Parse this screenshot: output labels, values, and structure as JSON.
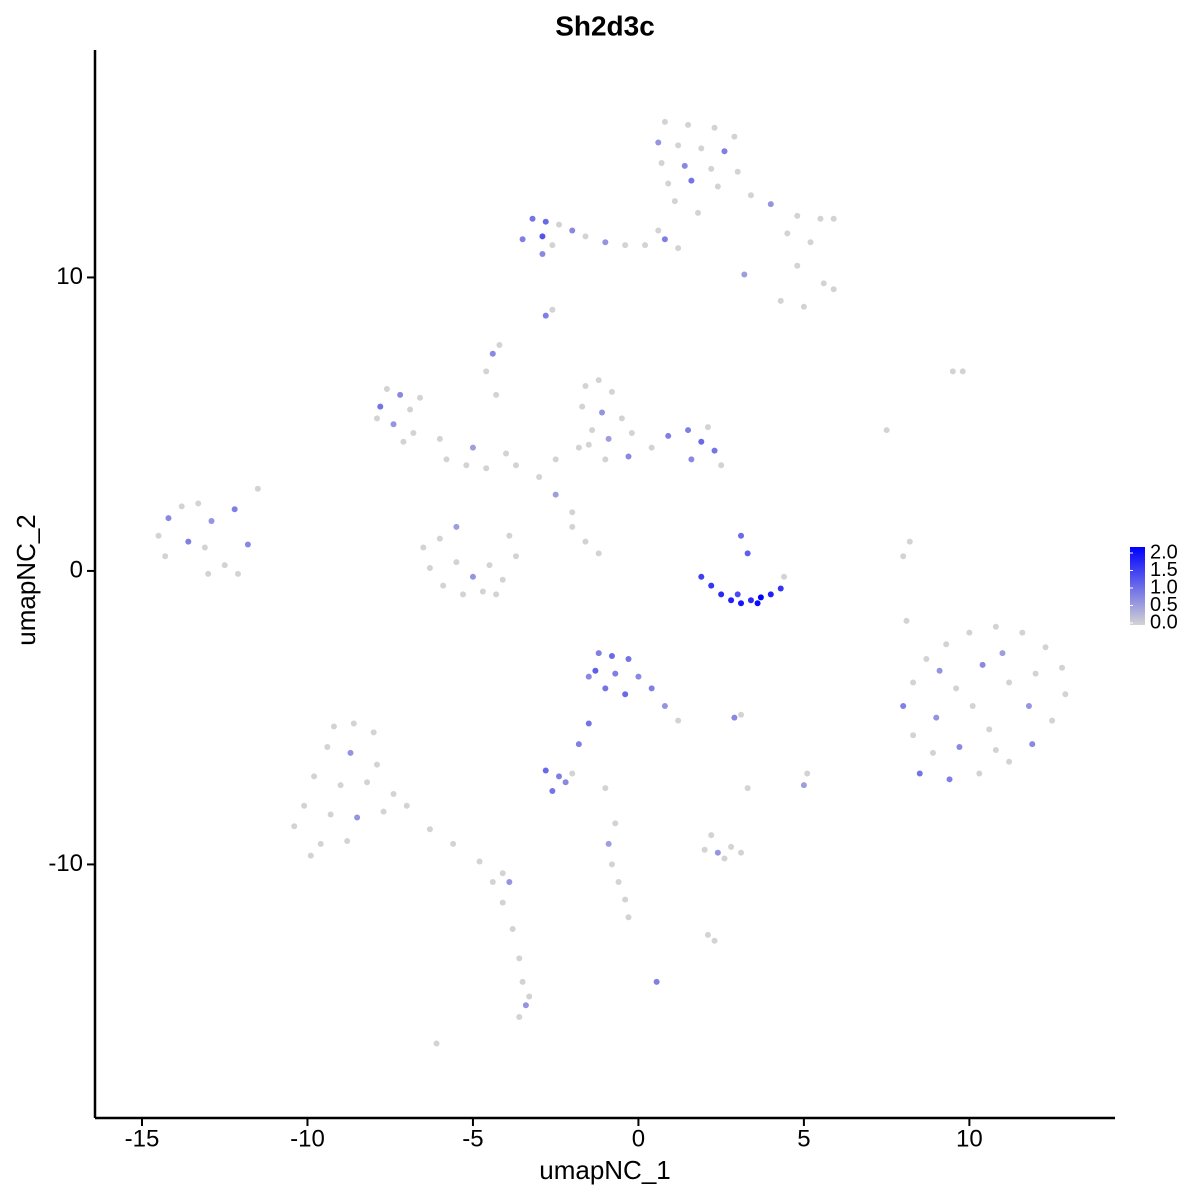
{
  "chart_data": {
    "type": "scatter",
    "title": "Sh2d3c",
    "x_label": "umapNC_1",
    "y_label": "umapNC_2",
    "xlim": [
      -16.42,
      14.4
    ],
    "ylim": [
      -18.64,
      17.75
    ],
    "xticks": [
      -15,
      -10,
      -5,
      0,
      5,
      10
    ],
    "yticks": [
      -10,
      0,
      10
    ],
    "color_low": "#d3d3d3",
    "color_high": "#0000ff",
    "clim": [
      0,
      2
    ],
    "colorbar_ticks": [
      {
        "value": 0,
        "label": "0.0"
      },
      0.5,
      {
        "value": 1,
        "label": "1.0"
      },
      1.5,
      {
        "value": 2,
        "label": "2.0"
      }
    ],
    "x": [
      0.8,
      1.5,
      2.3,
      2.9,
      0.6,
      1.2,
      1.9,
      2.6,
      0.7,
      1.4,
      2.2,
      3.0,
      0.9,
      1.6,
      2.4,
      1.1,
      1.8,
      3.4,
      4.0,
      4.8,
      5.5,
      5.9,
      4.5,
      5.2,
      4.8,
      5.6,
      5.9,
      4.3,
      5.0,
      3.2,
      -3.2,
      -2.8,
      -2.4,
      -3.5,
      -2.9,
      -2.6,
      -2.0,
      -1.6,
      -1.0,
      -0.4,
      0.2,
      0.8,
      1.2,
      -2.9,
      0.6,
      -2.8,
      -2.6,
      -4.4,
      -4.2,
      -7.8,
      -7.6,
      -7.2,
      -6.9,
      -7.4,
      -6.8,
      -7.9,
      -7.1,
      -6.6,
      -6.0,
      -5.0,
      -5.8,
      -5.2,
      -4.6,
      -4.0,
      -4.6,
      -4.3,
      -3.7,
      -2.5,
      -2.0,
      -1.6,
      -1.2,
      -0.8,
      -1.7,
      -1.1,
      -0.5,
      -1.4,
      -0.9,
      -0.2,
      -1.8,
      -1.0,
      -0.3,
      0.4,
      0.9,
      1.5,
      1.9,
      2.3,
      2.5,
      1.6,
      2.1,
      -2.5,
      -3.0,
      -2.0,
      -1.6,
      -1.2,
      -1.5,
      -6.5,
      -6.3,
      -5.9,
      -5.3,
      -4.7,
      -4.1,
      -3.7,
      -3.9,
      -5.0,
      -5.5,
      -4.5,
      -6.0,
      -5.5,
      -4.3,
      -14.5,
      -14.2,
      -13.8,
      -13.3,
      -12.9,
      -13.6,
      -14.3,
      -13.1,
      -12.5,
      -12.1,
      -13.0,
      -11.8,
      -11.5,
      -12.2,
      1.9,
      2.2,
      2.5,
      2.8,
      3.1,
      3.4,
      3.7,
      4.0,
      4.3,
      4.4,
      3.0,
      3.6,
      3.1,
      3.3,
      8.0,
      8.3,
      8.7,
      9.3,
      10.0,
      10.8,
      11.6,
      12.3,
      12.8,
      12.9,
      12.5,
      11.9,
      11.2,
      10.3,
      9.4,
      8.5,
      8.3,
      9.0,
      9.6,
      10.4,
      11.2,
      11.8,
      10.6,
      9.7,
      10.1,
      11.0,
      12.0,
      9.1,
      10.8,
      8.9,
      -1.2,
      -0.8,
      -0.3,
      -1.3,
      -0.7,
      0.0,
      -1.0,
      -0.4,
      0.4,
      0.8,
      1.2,
      -1.5,
      -1.5,
      -1.8,
      -2.8,
      -2.4,
      -2.0,
      -2.6,
      -2.2,
      -9.2,
      -8.6,
      -8.0,
      -9.4,
      -8.7,
      -7.9,
      -9.8,
      -9.0,
      -8.2,
      -7.4,
      -10.1,
      -9.3,
      -8.5,
      -7.7,
      -10.4,
      -9.6,
      -8.8,
      -9.9,
      -7.0,
      -6.3,
      -5.6,
      -4.8,
      -4.1,
      -3.9,
      -4.4,
      -4.1,
      -3.8,
      -3.6,
      -3.5,
      -3.4,
      -3.6,
      -3.3,
      2.0,
      2.4,
      2.8,
      3.1,
      2.2,
      2.6,
      -0.9,
      -0.8,
      -0.6,
      -0.4,
      -0.3,
      -0.7,
      2.3,
      2.1,
      0.55,
      -6.1,
      9.5,
      9.8,
      7.5,
      8.0,
      8.2,
      8.1,
      5.0,
      5.1,
      2.9,
      3.1,
      3.3,
      -1.0
    ],
    "y": [
      15.3,
      15.2,
      15.1,
      14.8,
      14.6,
      14.5,
      14.4,
      14.3,
      13.9,
      13.8,
      13.7,
      13.6,
      13.2,
      13.3,
      13.1,
      12.6,
      12.2,
      12.8,
      12.5,
      12.1,
      12.0,
      12.0,
      11.5,
      11.2,
      10.4,
      9.8,
      9.6,
      9.2,
      9.0,
      10.1,
      12.0,
      11.9,
      11.8,
      11.3,
      11.4,
      11.1,
      11.6,
      11.4,
      11.2,
      11.1,
      11.1,
      11.3,
      11.0,
      10.8,
      11.6,
      8.7,
      8.9,
      7.4,
      7.7,
      5.6,
      6.2,
      6.0,
      5.5,
      5.0,
      4.7,
      5.2,
      4.4,
      5.9,
      4.5,
      4.2,
      3.8,
      3.6,
      3.5,
      4.0,
      6.8,
      6.0,
      3.6,
      2.6,
      2.0,
      6.3,
      6.5,
      6.1,
      5.6,
      5.4,
      5.2,
      4.8,
      4.5,
      4.7,
      4.2,
      3.8,
      3.9,
      4.2,
      4.6,
      4.8,
      4.4,
      4.1,
      3.6,
      3.8,
      4.9,
      3.8,
      3.2,
      1.5,
      1.0,
      0.6,
      4.3,
      0.8,
      0.1,
      -0.5,
      -0.8,
      -0.7,
      -0.3,
      0.5,
      1.2,
      -0.2,
      0.3,
      0.2,
      1.1,
      1.5,
      -0.8,
      1.2,
      1.8,
      2.2,
      2.3,
      1.7,
      1.0,
      0.5,
      0.8,
      0.2,
      -0.1,
      -0.1,
      0.9,
      2.8,
      2.1,
      -0.2,
      -0.5,
      -0.8,
      -1.0,
      -1.1,
      -1.0,
      -0.9,
      -0.8,
      -0.6,
      -0.2,
      -0.8,
      -1.1,
      1.2,
      0.6,
      -4.6,
      -3.8,
      -3.0,
      -2.5,
      -2.1,
      -1.9,
      -2.1,
      -2.6,
      -3.3,
      -4.2,
      -5.1,
      -5.9,
      -6.5,
      -6.9,
      -7.1,
      -6.9,
      -5.6,
      -5.0,
      -4.0,
      -3.2,
      -3.8,
      -4.6,
      -5.4,
      -6.0,
      -4.6,
      -2.8,
      -3.5,
      -3.4,
      -6.1,
      -6.2,
      -2.8,
      -2.9,
      -3.0,
      -3.4,
      -3.5,
      -3.6,
      -4.0,
      -4.2,
      -4.0,
      -4.6,
      -5.1,
      -3.6,
      -5.2,
      -5.9,
      -6.8,
      -7.0,
      -6.9,
      -7.5,
      -7.2,
      -5.3,
      -5.2,
      -5.5,
      -6.0,
      -6.2,
      -6.6,
      -7.0,
      -7.3,
      -7.2,
      -7.6,
      -8.0,
      -8.3,
      -8.4,
      -8.2,
      -8.7,
      -9.3,
      -9.2,
      -9.7,
      -8.0,
      -8.8,
      -9.3,
      -9.9,
      -10.3,
      -10.6,
      -10.6,
      -11.3,
      -12.2,
      -13.2,
      -14.0,
      -14.8,
      -15.2,
      -14.5,
      -9.5,
      -9.6,
      -9.4,
      -9.6,
      -9.0,
      -9.8,
      -9.3,
      -10.0,
      -10.6,
      -11.2,
      -11.8,
      -8.6,
      -12.6,
      -12.4,
      -14.0,
      -16.1,
      6.8,
      6.8,
      4.8,
      0.5,
      1.0,
      -1.7,
      -7.3,
      -6.9,
      -5.0,
      -4.9,
      -7.4,
      -7.4
    ],
    "values": [
      0,
      0,
      0,
      0,
      0.6,
      0,
      0,
      0.8,
      0,
      0.7,
      0,
      0,
      0,
      0.9,
      0,
      0,
      0,
      0,
      0.6,
      0,
      0,
      0,
      0,
      0,
      0,
      0,
      0,
      0,
      0,
      0.5,
      0.9,
      1.0,
      0,
      0.8,
      1.2,
      0,
      0.7,
      0,
      0.6,
      0,
      0,
      0.8,
      0,
      0.7,
      0,
      0.8,
      0,
      0.7,
      0,
      0.9,
      0,
      0.7,
      0,
      0.6,
      0,
      0,
      0,
      0,
      0,
      0.5,
      0,
      0,
      0,
      0,
      0,
      0,
      0,
      0.5,
      0,
      0,
      0,
      0,
      0,
      0.6,
      0,
      0,
      0.5,
      0,
      0,
      0,
      0.7,
      0,
      0.8,
      0.8,
      1.0,
      0.9,
      0,
      0.7,
      0,
      0,
      0,
      0,
      0,
      0,
      0,
      0,
      0,
      0,
      0,
      0,
      0,
      0,
      0,
      0.6,
      0,
      0,
      0,
      0.5,
      0,
      0,
      0.7,
      0,
      0,
      0.6,
      0.8,
      0,
      0,
      0,
      0,
      0,
      0.7,
      0,
      0.8,
      1.4,
      1.5,
      1.6,
      1.7,
      1.8,
      1.6,
      2.0,
      1.7,
      1.5,
      0,
      1.3,
      1.9,
      1.0,
      1.1,
      0.8,
      0,
      0,
      0,
      0,
      0,
      0,
      0,
      0,
      0,
      0,
      0.7,
      0,
      0,
      0.8,
      0.9,
      0,
      0.6,
      0,
      0.7,
      0,
      0.6,
      0,
      0.7,
      0,
      0.5,
      0,
      0.6,
      0,
      0,
      0.8,
      1.0,
      0.9,
      1.1,
      0.8,
      0.7,
      0.9,
      1.0,
      0.8,
      0.6,
      0,
      0.7,
      0.9,
      0.8,
      1.0,
      0.8,
      0,
      0.9,
      0.7,
      0,
      0,
      0,
      0,
      0.6,
      0,
      0,
      0,
      0,
      0,
      0,
      0,
      0.6,
      0,
      0,
      0,
      0,
      0,
      0,
      0,
      0,
      0,
      0,
      0.6,
      0,
      0,
      0,
      0,
      0,
      0.6,
      0,
      0,
      0,
      0.6,
      0,
      0,
      0,
      0,
      0.5,
      0,
      0,
      0,
      0,
      0,
      0,
      0,
      0.8,
      0,
      0,
      0,
      0,
      0,
      0,
      0,
      0.5,
      0,
      0.7,
      0,
      0,
      0
    ]
  }
}
